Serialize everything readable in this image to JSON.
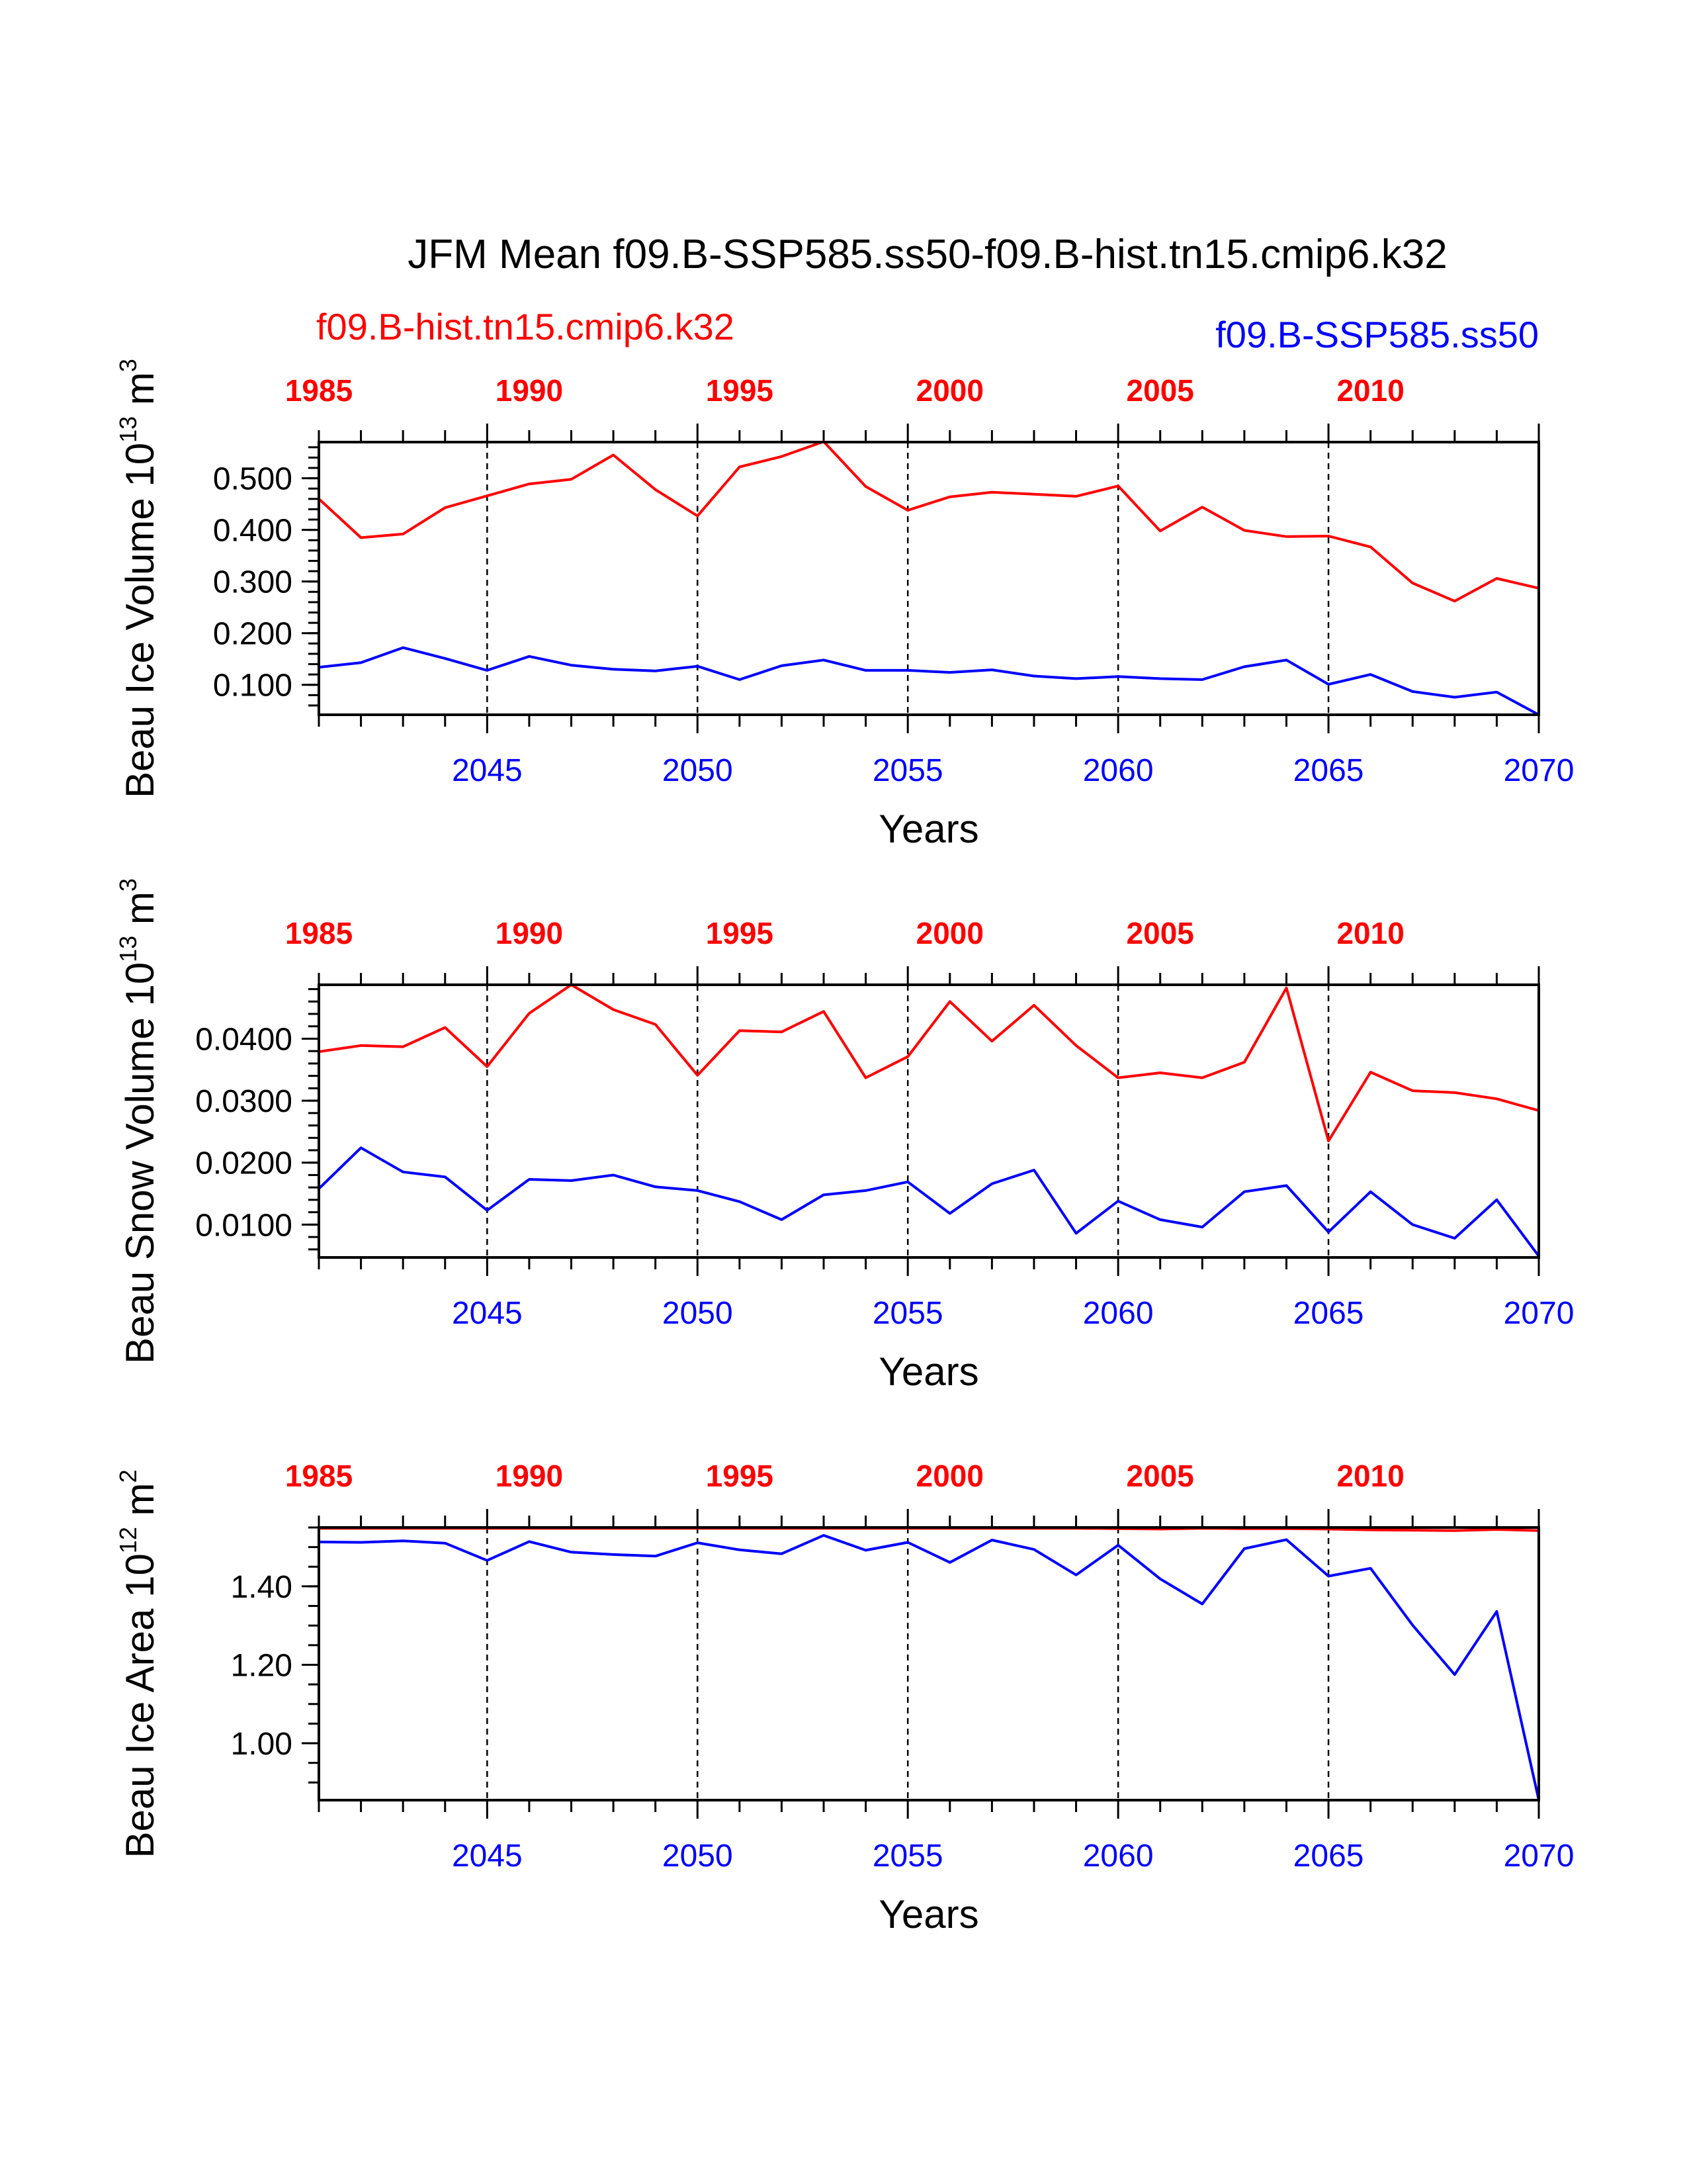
{
  "figure": {
    "title": "JFM Mean f09.B-SSP585.ss50-f09.B-hist.tn15.cmip6.k32",
    "hist_label": "f09.B-hist.tn15.cmip6.k32",
    "ssp_label": "f09.B-SSP585.ss50",
    "colors": {
      "hist": "#ff0000",
      "ssp": "#0000ff",
      "axis": "#000000"
    }
  },
  "chart_data": [
    {
      "type": "line",
      "ylabel": "Beau Ice Volume 10",
      "ylabel_exp": "13",
      "ylabel_unit": "m",
      "ylabel_unit_exp": "3",
      "xlabel": "Years",
      "ylim": [
        0.042,
        0.57
      ],
      "y_ticks": [
        0.1,
        0.2,
        0.3,
        0.4,
        0.5
      ],
      "y_tick_labels": [
        "0.100",
        "0.200",
        "0.300",
        "0.400",
        "0.500"
      ],
      "y_minor_step": 0.02,
      "xlim": [
        2041,
        2070
      ],
      "bottom_ticks": [
        2045,
        2050,
        2055,
        2060,
        2065,
        2070
      ],
      "top_ticks": [
        1985,
        1990,
        1995,
        2000,
        2005,
        2010
      ],
      "dashed_lines": [
        2045,
        2050,
        2055,
        2060,
        2065
      ],
      "hist_years": [
        1985,
        1986,
        1987,
        1988,
        1989,
        1990,
        1991,
        1992,
        1993,
        1994,
        1995,
        1996,
        1997,
        1998,
        1999,
        2000,
        2001,
        2002,
        2003,
        2004,
        2005,
        2006,
        2007,
        2008,
        2009,
        2010,
        2011,
        2012,
        2013,
        2014
      ],
      "ssp_years": [
        2041,
        2042,
        2043,
        2044,
        2045,
        2046,
        2047,
        2048,
        2049,
        2050,
        2051,
        2052,
        2053,
        2054,
        2055,
        2056,
        2057,
        2058,
        2059,
        2060,
        2061,
        2062,
        2063,
        2064,
        2065,
        2066,
        2067,
        2068,
        2069,
        2070
      ],
      "series": [
        {
          "name": "f09.B-hist.tn15.cmip6.k32",
          "values": [
            0.46,
            0.385,
            0.392,
            0.443,
            0.466,
            0.489,
            0.498,
            0.545,
            0.478,
            0.427,
            0.522,
            0.542,
            0.571,
            0.484,
            0.438,
            0.464,
            0.473,
            0.469,
            0.465,
            0.485,
            0.398,
            0.444,
            0.399,
            0.387,
            0.388,
            0.367,
            0.297,
            0.262,
            0.306,
            0.287
          ]
        },
        {
          "name": "f09.B-SSP585.ss50",
          "values": [
            0.134,
            0.143,
            0.172,
            0.151,
            0.128,
            0.155,
            0.138,
            0.13,
            0.127,
            0.136,
            0.11,
            0.137,
            0.148,
            0.128,
            0.128,
            0.124,
            0.129,
            0.117,
            0.112,
            0.116,
            0.112,
            0.11,
            0.135,
            0.148,
            0.101,
            0.12,
            0.087,
            0.076,
            0.086,
            0.042
          ]
        }
      ]
    },
    {
      "type": "line",
      "ylabel": "Beau Snow Volume 10",
      "ylabel_exp": "13",
      "ylabel_unit": "m",
      "ylabel_unit_exp": "3",
      "xlabel": "Years",
      "ylim": [
        0.0047,
        0.0487
      ],
      "y_ticks": [
        0.01,
        0.02,
        0.03,
        0.04
      ],
      "y_tick_labels": [
        "0.0100",
        "0.0200",
        "0.0300",
        "0.0400"
      ],
      "y_minor_step": 0.002,
      "xlim": [
        2041,
        2070
      ],
      "bottom_ticks": [
        2045,
        2050,
        2055,
        2060,
        2065,
        2070
      ],
      "top_ticks": [
        1985,
        1990,
        1995,
        2000,
        2005,
        2010
      ],
      "dashed_lines": [
        2045,
        2050,
        2055,
        2060,
        2065
      ],
      "hist_years": [
        1985,
        1986,
        1987,
        1988,
        1989,
        1990,
        1991,
        1992,
        1993,
        1994,
        1995,
        1996,
        1997,
        1998,
        1999,
        2000,
        2001,
        2002,
        2003,
        2004,
        2005,
        2006,
        2007,
        2008,
        2009,
        2010,
        2011,
        2012,
        2013,
        2014
      ],
      "ssp_years": [
        2041,
        2042,
        2043,
        2044,
        2045,
        2046,
        2047,
        2048,
        2049,
        2050,
        2051,
        2052,
        2053,
        2054,
        2055,
        2056,
        2057,
        2058,
        2059,
        2060,
        2061,
        2062,
        2063,
        2064,
        2065,
        2066,
        2067,
        2068,
        2069,
        2070
      ],
      "series": [
        {
          "name": "f09.B-hist.tn15.cmip6.k32",
          "values": [
            0.0379,
            0.0389,
            0.0387,
            0.0418,
            0.0355,
            0.0441,
            0.0487,
            0.0447,
            0.0423,
            0.0341,
            0.0413,
            0.0411,
            0.0444,
            0.0337,
            0.0371,
            0.046,
            0.0396,
            0.0454,
            0.0389,
            0.0337,
            0.0345,
            0.0337,
            0.0362,
            0.0482,
            0.0235,
            0.0346,
            0.0316,
            0.0313,
            0.0303,
            0.0284
          ]
        },
        {
          "name": "f09.B-SSP585.ss50",
          "values": [
            0.0158,
            0.0224,
            0.0185,
            0.0177,
            0.0123,
            0.0173,
            0.0171,
            0.018,
            0.0161,
            0.0155,
            0.0137,
            0.0108,
            0.0148,
            0.0155,
            0.0169,
            0.0118,
            0.0166,
            0.0188,
            0.0086,
            0.0138,
            0.0108,
            0.0096,
            0.0153,
            0.0163,
            0.0088,
            0.0153,
            0.01,
            0.0078,
            0.014,
            0.0049
          ]
        }
      ]
    },
    {
      "type": "line",
      "ylabel": "Beau Ice Area 10",
      "ylabel_exp": "12",
      "ylabel_unit": "m",
      "ylabel_unit_exp": "2",
      "xlabel": "Years",
      "ylim": [
        0.855,
        1.55
      ],
      "y_ticks": [
        1.0,
        1.2,
        1.4
      ],
      "y_tick_labels": [
        "1.00",
        "1.20",
        "1.40"
      ],
      "y_minor_step": 0.05,
      "xlim": [
        2041,
        2070
      ],
      "bottom_ticks": [
        2045,
        2050,
        2055,
        2060,
        2065,
        2070
      ],
      "top_ticks": [
        1985,
        1990,
        1995,
        2000,
        2005,
        2010
      ],
      "dashed_lines": [
        2045,
        2050,
        2055,
        2060,
        2065
      ],
      "hist_years": [
        1985,
        1986,
        1987,
        1988,
        1989,
        1990,
        1991,
        1992,
        1993,
        1994,
        1995,
        1996,
        1997,
        1998,
        1999,
        2000,
        2001,
        2002,
        2003,
        2004,
        2005,
        2006,
        2007,
        2008,
        2009,
        2010,
        2011,
        2012,
        2013,
        2014
      ],
      "ssp_years": [
        2041,
        2042,
        2043,
        2044,
        2045,
        2046,
        2047,
        2048,
        2049,
        2050,
        2051,
        2052,
        2053,
        2054,
        2055,
        2056,
        2057,
        2058,
        2059,
        2060,
        2061,
        2062,
        2063,
        2064,
        2065,
        2066,
        2067,
        2068,
        2069,
        2070
      ],
      "series": [
        {
          "name": "f09.B-hist.tn15.cmip6.k32",
          "values": [
            1.548,
            1.548,
            1.548,
            1.548,
            1.548,
            1.548,
            1.548,
            1.548,
            1.548,
            1.548,
            1.548,
            1.548,
            1.548,
            1.548,
            1.548,
            1.548,
            1.548,
            1.548,
            1.548,
            1.547,
            1.546,
            1.548,
            1.547,
            1.547,
            1.546,
            1.544,
            1.543,
            1.542,
            1.545,
            1.542
          ]
        },
        {
          "name": "f09.B-SSP585.ss50",
          "values": [
            1.513,
            1.512,
            1.516,
            1.51,
            1.466,
            1.514,
            1.487,
            1.481,
            1.477,
            1.511,
            1.493,
            1.483,
            1.53,
            1.492,
            1.512,
            1.461,
            1.518,
            1.494,
            1.429,
            1.505,
            1.419,
            1.355,
            1.496,
            1.519,
            1.426,
            1.446,
            1.301,
            1.175,
            1.336,
            0.855
          ]
        }
      ]
    }
  ]
}
